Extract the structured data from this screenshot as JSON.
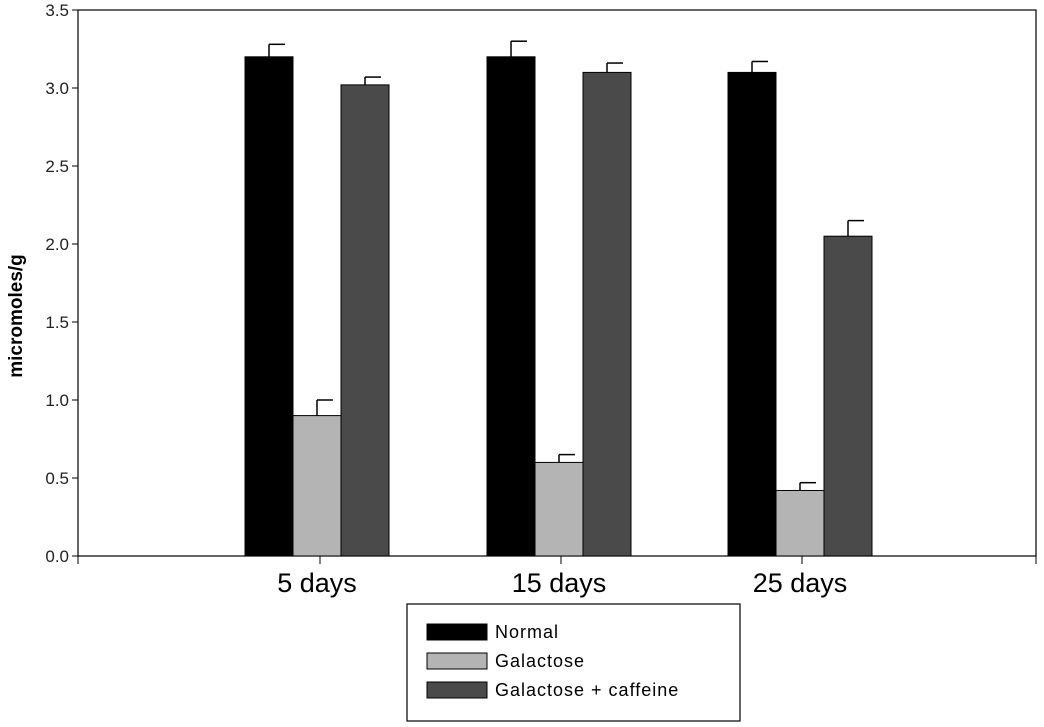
{
  "chart_data": {
    "type": "bar",
    "title": "",
    "xlabel": "",
    "ylabel": "micromoles/g",
    "ylim": [
      0.0,
      3.5
    ],
    "yticks": [
      "0.0",
      "0.5",
      "1.0",
      "1.5",
      "2.0",
      "2.5",
      "3.0",
      "3.5"
    ],
    "grid": false,
    "legend_position": "bottom",
    "categories": [
      "5 days",
      "15 days",
      "25 days"
    ],
    "series": [
      {
        "name": "Normal",
        "color": "#000000",
        "values": [
          3.2,
          3.2,
          3.1
        ],
        "errors": [
          0.08,
          0.1,
          0.07
        ]
      },
      {
        "name": "Galactose",
        "color": "#b4b4b4",
        "values": [
          0.9,
          0.6,
          0.42
        ],
        "errors": [
          0.1,
          0.05,
          0.05
        ]
      },
      {
        "name": "Galactose + caffeine",
        "color": "#4a4a4a",
        "values": [
          3.02,
          3.1,
          2.05
        ],
        "errors": [
          0.05,
          0.06,
          0.1
        ]
      }
    ]
  }
}
